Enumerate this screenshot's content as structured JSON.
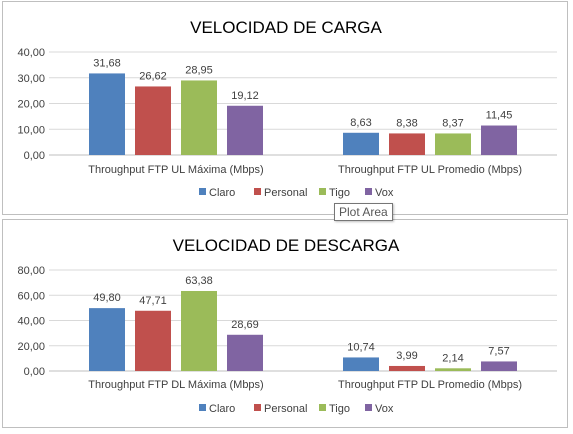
{
  "tooltip": "Plot Area",
  "chart_data": [
    {
      "type": "bar",
      "title": "VELOCIDAD DE CARGA",
      "categories": [
        "Throughput FTP UL Máxima (Mbps)",
        "Throughput FTP UL Promedio (Mbps)"
      ],
      "series": [
        {
          "name": "Claro",
          "color": "#4f81bd",
          "values": [
            31.68,
            8.63
          ],
          "labels": [
            "31,68",
            "8,63"
          ]
        },
        {
          "name": "Personal",
          "color": "#c0504d",
          "values": [
            26.62,
            8.38
          ],
          "labels": [
            "26,62",
            "8,38"
          ]
        },
        {
          "name": "Tigo",
          "color": "#9bbb59",
          "values": [
            28.95,
            8.37
          ],
          "labels": [
            "28,95",
            "8,37"
          ]
        },
        {
          "name": "Vox",
          "color": "#8064a2",
          "values": [
            19.12,
            11.45
          ],
          "labels": [
            "19,12",
            "11,45"
          ]
        }
      ],
      "ylim": [
        0,
        40
      ],
      "yticks": [
        0,
        10,
        20,
        30,
        40
      ],
      "ytick_labels": [
        "0,00",
        "10,00",
        "20,00",
        "30,00",
        "40,00"
      ],
      "grid": true,
      "legend": "bottom"
    },
    {
      "type": "bar",
      "title": "VELOCIDAD DE DESCARGA",
      "categories": [
        "Throughput FTP DL Máxima (Mbps)",
        "Throughput FTP DL Promedio (Mbps)"
      ],
      "series": [
        {
          "name": "Claro",
          "color": "#4f81bd",
          "values": [
            49.8,
            10.74
          ],
          "labels": [
            "49,80",
            "10,74"
          ]
        },
        {
          "name": "Personal",
          "color": "#c0504d",
          "values": [
            47.71,
            3.99
          ],
          "labels": [
            "47,71",
            "3,99"
          ]
        },
        {
          "name": "Tigo",
          "color": "#9bbb59",
          "values": [
            63.38,
            2.14
          ],
          "labels": [
            "63,38",
            "2,14"
          ]
        },
        {
          "name": "Vox",
          "color": "#8064a2",
          "values": [
            28.69,
            7.57
          ],
          "labels": [
            "28,69",
            "7,57"
          ]
        }
      ],
      "ylim": [
        0,
        80
      ],
      "yticks": [
        0,
        20,
        40,
        60,
        80
      ],
      "ytick_labels": [
        "0,00",
        "20,00",
        "40,00",
        "60,00",
        "80,00"
      ],
      "grid": true,
      "legend": "bottom"
    }
  ]
}
